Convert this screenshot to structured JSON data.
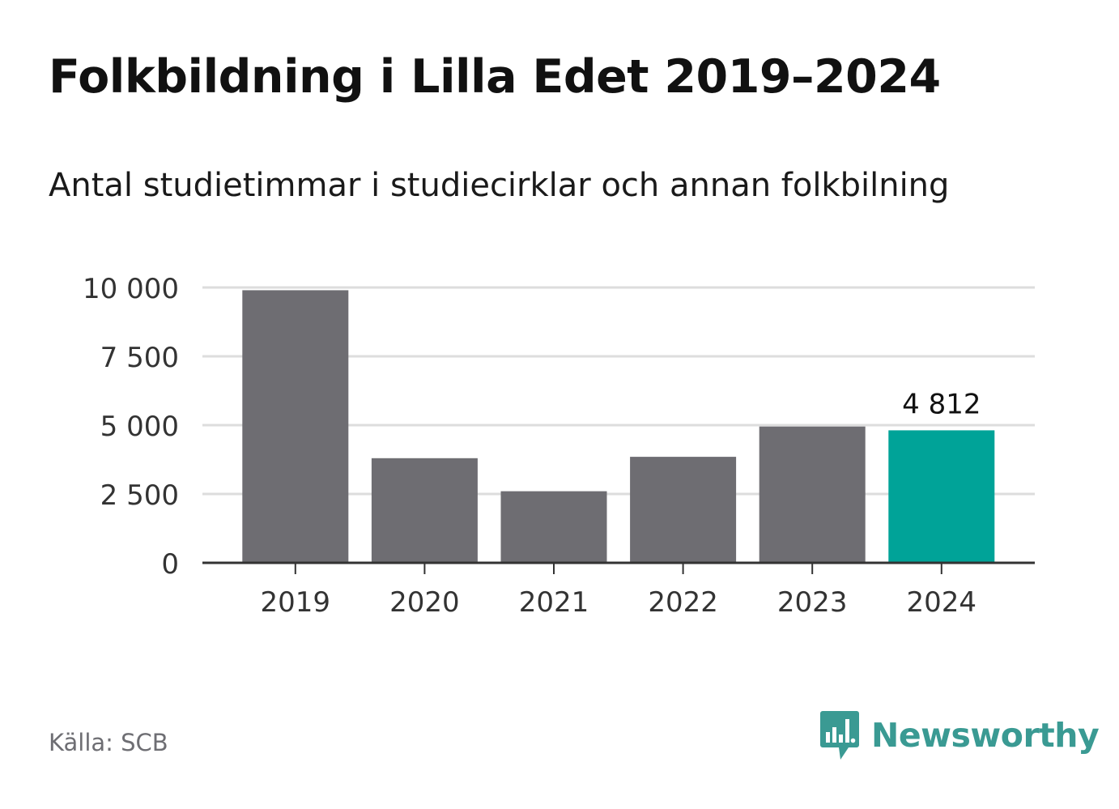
{
  "title": "Folkbildning i Lilla Edet 2019–2024",
  "subtitle": "Antal studietimmar i studiecirklar och annan folkbilning",
  "source": "Källa: SCB",
  "brand": {
    "name": "Newsworthy",
    "icon": "newsworthy-logo-icon"
  },
  "colors": {
    "bar": "#6e6d72",
    "highlight": "#00a398",
    "grid": "#dddddd",
    "axis": "#333333",
    "brand": "#3a9a93",
    "source_text": "#6e6e73"
  },
  "chart_data": {
    "type": "bar",
    "categories": [
      "2019",
      "2020",
      "2021",
      "2022",
      "2023",
      "2024"
    ],
    "values": [
      9900,
      3800,
      2600,
      3850,
      4950,
      4812
    ],
    "highlight_index": 5,
    "data_labels": [
      {
        "index": 5,
        "text": "4 812"
      }
    ],
    "ylim": [
      0,
      10000
    ],
    "yticks": [
      0,
      2500,
      5000,
      7500,
      10000
    ],
    "ytick_labels": [
      "0",
      "2 500",
      "5 000",
      "7 500",
      "10 000"
    ],
    "grid": true,
    "legend": "none",
    "xlabel": "",
    "ylabel": ""
  }
}
